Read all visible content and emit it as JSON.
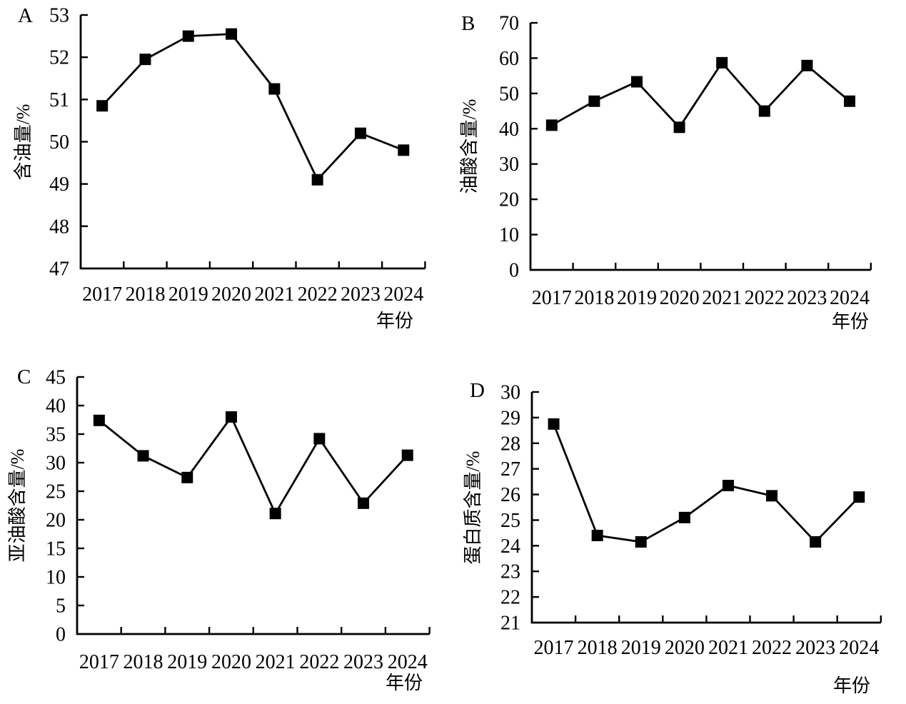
{
  "figure": {
    "background": "#ffffff",
    "line_color": "#000000",
    "marker_color": "#000000",
    "marker_shape": "filled-square"
  },
  "chart_data": [
    {
      "type": "line",
      "panel": "A",
      "ylabel": "含油量/%",
      "xlabel": "年份",
      "categories": [
        "2017",
        "2018",
        "2019",
        "2020",
        "2021",
        "2022",
        "2023",
        "2024"
      ],
      "values": [
        50.85,
        51.95,
        52.5,
        52.55,
        51.25,
        49.1,
        50.2,
        49.8
      ],
      "ylim": [
        47,
        53
      ],
      "ystep": 1,
      "grid": false,
      "legend": "none"
    },
    {
      "type": "line",
      "panel": "B",
      "ylabel": "油酸含量/%",
      "xlabel": "年份",
      "categories": [
        "2017",
        "2018",
        "2019",
        "2020",
        "2021",
        "2022",
        "2023",
        "2024"
      ],
      "values": [
        41.0,
        47.8,
        53.3,
        40.4,
        58.7,
        45.0,
        57.9,
        47.8
      ],
      "ylim": [
        0,
        70
      ],
      "ystep": 10,
      "grid": false,
      "legend": "none"
    },
    {
      "type": "line",
      "panel": "C",
      "ylabel": "亚油酸含量/%",
      "xlabel": "年份",
      "categories": [
        "2017",
        "2018",
        "2019",
        "2020",
        "2021",
        "2022",
        "2023",
        "2024"
      ],
      "values": [
        37.4,
        31.2,
        27.4,
        38.0,
        21.1,
        34.2,
        22.9,
        31.3
      ],
      "ylim": [
        0,
        45
      ],
      "ystep": 5,
      "grid": false,
      "legend": "none"
    },
    {
      "type": "line",
      "panel": "D",
      "ylabel": "蛋白质含量/%",
      "xlabel": "年份",
      "categories": [
        "2017",
        "2018",
        "2019",
        "2020",
        "2021",
        "2022",
        "2023",
        "2024"
      ],
      "values": [
        28.75,
        24.4,
        24.15,
        25.1,
        26.35,
        25.95,
        24.15,
        25.9
      ],
      "ylim": [
        21,
        30
      ],
      "ystep": 1,
      "grid": false,
      "legend": "none"
    }
  ]
}
